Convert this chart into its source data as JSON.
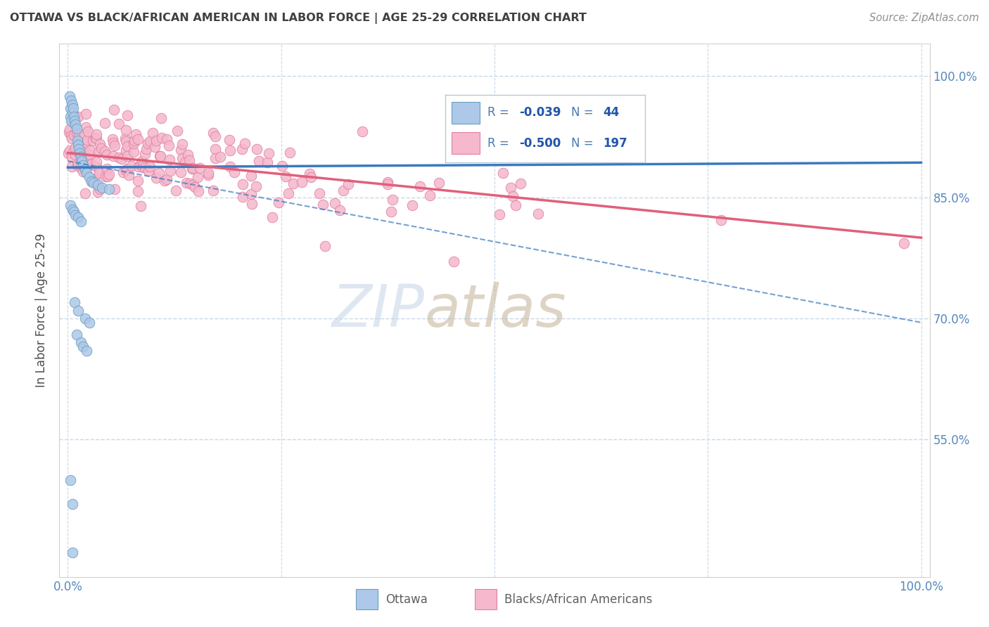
{
  "title": "OTTAWA VS BLACK/AFRICAN AMERICAN IN LABOR FORCE | AGE 25-29 CORRELATION CHART",
  "source": "Source: ZipAtlas.com",
  "ylabel": "In Labor Force | Age 25-29",
  "xlim": [
    -0.01,
    1.01
  ],
  "ylim": [
    0.38,
    1.04
  ],
  "yticks": [
    0.55,
    0.7,
    0.85,
    1.0
  ],
  "ytick_labels": [
    "55.0%",
    "70.0%",
    "85.0%",
    "100.0%"
  ],
  "xtick_labels": [
    "0.0%",
    "",
    "",
    "",
    "100.0%"
  ],
  "ottawa_color": "#adc8e8",
  "ottawa_edge": "#6a9fc0",
  "pink_color": "#f5b8cc",
  "pink_edge": "#e080a0",
  "ottawa_line_color": "#3a7abf",
  "pink_line_color": "#e0607a",
  "watermark_zip_color": "#c8d8e8",
  "watermark_atlas_color": "#c8b8a0",
  "background_color": "#ffffff",
  "grid_color": "#c8d8e8",
  "title_color": "#404040",
  "source_color": "#909090",
  "axis_label_color": "#505050",
  "tick_color": "#5588bb",
  "legend_label_color": "#4a7ab0",
  "legend_value_color": "#2255aa",
  "bottom_legend_color": "#606060",
  "ottawa_R": -0.039,
  "ottawa_N": 44,
  "pink_R": -0.5,
  "pink_N": 197
}
